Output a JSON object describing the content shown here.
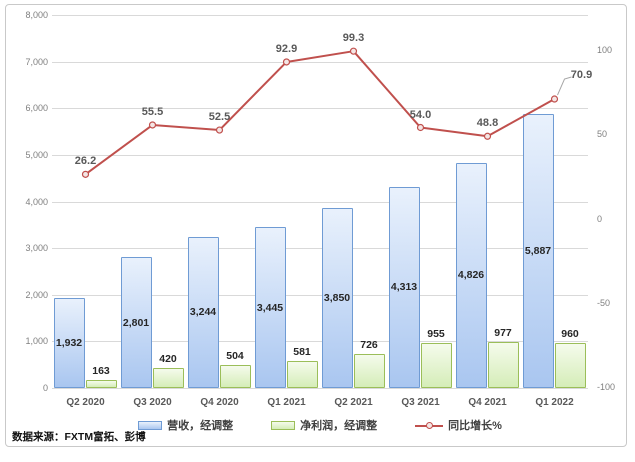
{
  "chart_data": {
    "type": "combo-bar-line",
    "categories": [
      "Q2 2020",
      "Q3 2020",
      "Q4 2020",
      "Q1 2021",
      "Q2 2021",
      "Q3 2021",
      "Q4 2021",
      "Q1 2022"
    ],
    "series": [
      {
        "name": "营收，经调整",
        "type": "bar",
        "axis": "left",
        "values": [
          1932,
          2801,
          3244,
          3445,
          3850,
          4313,
          4826,
          5887
        ],
        "labels": [
          "1,932",
          "2,801",
          "3,244",
          "3,445",
          "3,850",
          "4,313",
          "4,826",
          "5,887"
        ],
        "fill_top": "#E9F1FC",
        "fill_bottom": "#A9C6F0",
        "border": "#6F9BD4"
      },
      {
        "name": "净利润，经调整",
        "type": "bar",
        "axis": "left",
        "values": [
          163,
          420,
          504,
          581,
          726,
          955,
          977,
          960
        ],
        "labels": [
          "163",
          "420",
          "504",
          "581",
          "726",
          "955",
          "977",
          "960"
        ],
        "fill_top": "#F5FBEC",
        "fill_bottom": "#D5EDB8",
        "border": "#9BBE59"
      },
      {
        "name": "同比增长%",
        "type": "line",
        "axis": "right",
        "values": [
          26.2,
          55.5,
          52.5,
          92.9,
          99.3,
          54.0,
          48.8,
          70.9
        ],
        "labels": [
          "26.2",
          "55.5",
          "52.5",
          "92.9",
          "99.3",
          "54.0",
          "48.8",
          "70.9"
        ],
        "color": "#C0504D",
        "marker_fill": "#F4E6E5"
      }
    ],
    "left_axis": {
      "min": 0,
      "max": 8000,
      "step": 1000,
      "ticks": [
        0,
        1000,
        2000,
        3000,
        4000,
        5000,
        6000,
        7000,
        8000
      ],
      "tick_labels": [
        "0",
        "1,000",
        "2,000",
        "3,000",
        "4,000",
        "5,000",
        "6,000",
        "7,000",
        "8,000"
      ]
    },
    "right_axis": {
      "min": -100,
      "max": 100,
      "ticks": [
        -100,
        -50,
        0,
        50,
        100
      ],
      "tick_labels": [
        "-100",
        "-50",
        "0",
        "50",
        "100"
      ]
    },
    "grid": true,
    "legend_position": "bottom",
    "source_note": "数据来源：FXTM富拓、彭博",
    "colors": {
      "gridline": "#D9D9D9",
      "axis_text": "#7F7F7F",
      "category_text": "#595959",
      "bar_label_text": "#262626",
      "line_label_text": "#595959",
      "frame_border": "#C9C9C9",
      "leader_line": "#A6A6A6"
    }
  }
}
